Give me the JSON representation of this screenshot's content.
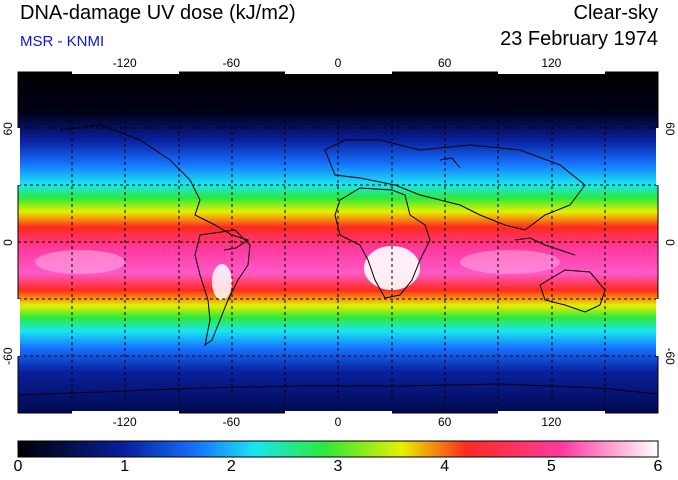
{
  "header": {
    "title": "DNA-damage UV dose (kJ/m2)",
    "subtitle": "MSR - KNMI",
    "condition": "Clear-sky",
    "date": "23 February 1974"
  },
  "map": {
    "lon_ticks": [
      "-120",
      "-60",
      "0",
      "60",
      "120"
    ],
    "lat_ticks_left": [
      "60",
      "0",
      "-60"
    ],
    "lat_ticks_right": [
      "60",
      "0",
      "-60"
    ],
    "lon_values": [
      -120,
      -60,
      0,
      60,
      120
    ],
    "lat_values": [
      60,
      0,
      -60
    ],
    "gridlines": "dashed every 30 degrees"
  },
  "colorbar": {
    "labels": [
      "0",
      "1",
      "2",
      "3",
      "4",
      "5",
      "6"
    ],
    "min": 0,
    "max": 6,
    "stops": [
      "#000000",
      "#0a1f9c",
      "#1673ff",
      "#19e6f0",
      "#2ee83a",
      "#e6f000",
      "#ff2a1f",
      "#ff3aa0",
      "#ffffff"
    ]
  }
}
